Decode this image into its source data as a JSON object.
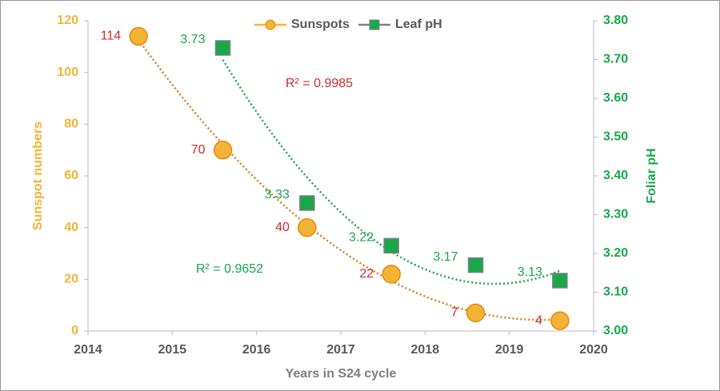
{
  "chart_data": {
    "type": "scatter",
    "x_label": "Years in S24 cycle",
    "y_label": "Sunspot numbers",
    "y2_label": "Foliar pH",
    "xlim": [
      2014,
      2020
    ],
    "xticks": [
      2014,
      2015,
      2016,
      2017,
      2018,
      2019,
      2020
    ],
    "ylim": [
      0,
      120
    ],
    "yticks": [
      0,
      20,
      40,
      60,
      80,
      100,
      120
    ],
    "y2lim": [
      3,
      3.8
    ],
    "y2ticks": [
      {
        "value": 3,
        "label": "3.00"
      },
      {
        "value": 3.1,
        "label": "3.10"
      },
      {
        "value": 3.2,
        "label": "3.20"
      },
      {
        "value": 3.3,
        "label": "3.30"
      },
      {
        "value": 3.4,
        "label": "3.40"
      },
      {
        "value": 3.5,
        "label": "3.50"
      },
      {
        "value": 3.6,
        "label": "3.60"
      },
      {
        "value": 3.7,
        "label": "3.70"
      },
      {
        "value": 3.8,
        "label": "3.80"
      }
    ],
    "legend": "top",
    "trendline": "polynomial",
    "series": [
      {
        "name": "Sunspots",
        "color": "#f5b335",
        "label_color": "#d42a2a",
        "axis": "y",
        "x": [
          2014.6,
          2015.6,
          2016.6,
          2017.6,
          2018.6,
          2019.6
        ],
        "values": [
          114,
          70,
          40,
          22,
          7,
          4
        ],
        "r2_label": "R² = 0.9985"
      },
      {
        "name": "Leaf pH",
        "color": "#18a84a",
        "label_color": "#18a84a",
        "axis": "y2",
        "x": [
          2015.6,
          2016.6,
          2017.6,
          2018.6,
          2019.6
        ],
        "values": [
          3.73,
          3.33,
          3.22,
          3.17,
          3.13
        ],
        "r2_label": "R² = 0.9652"
      }
    ]
  }
}
